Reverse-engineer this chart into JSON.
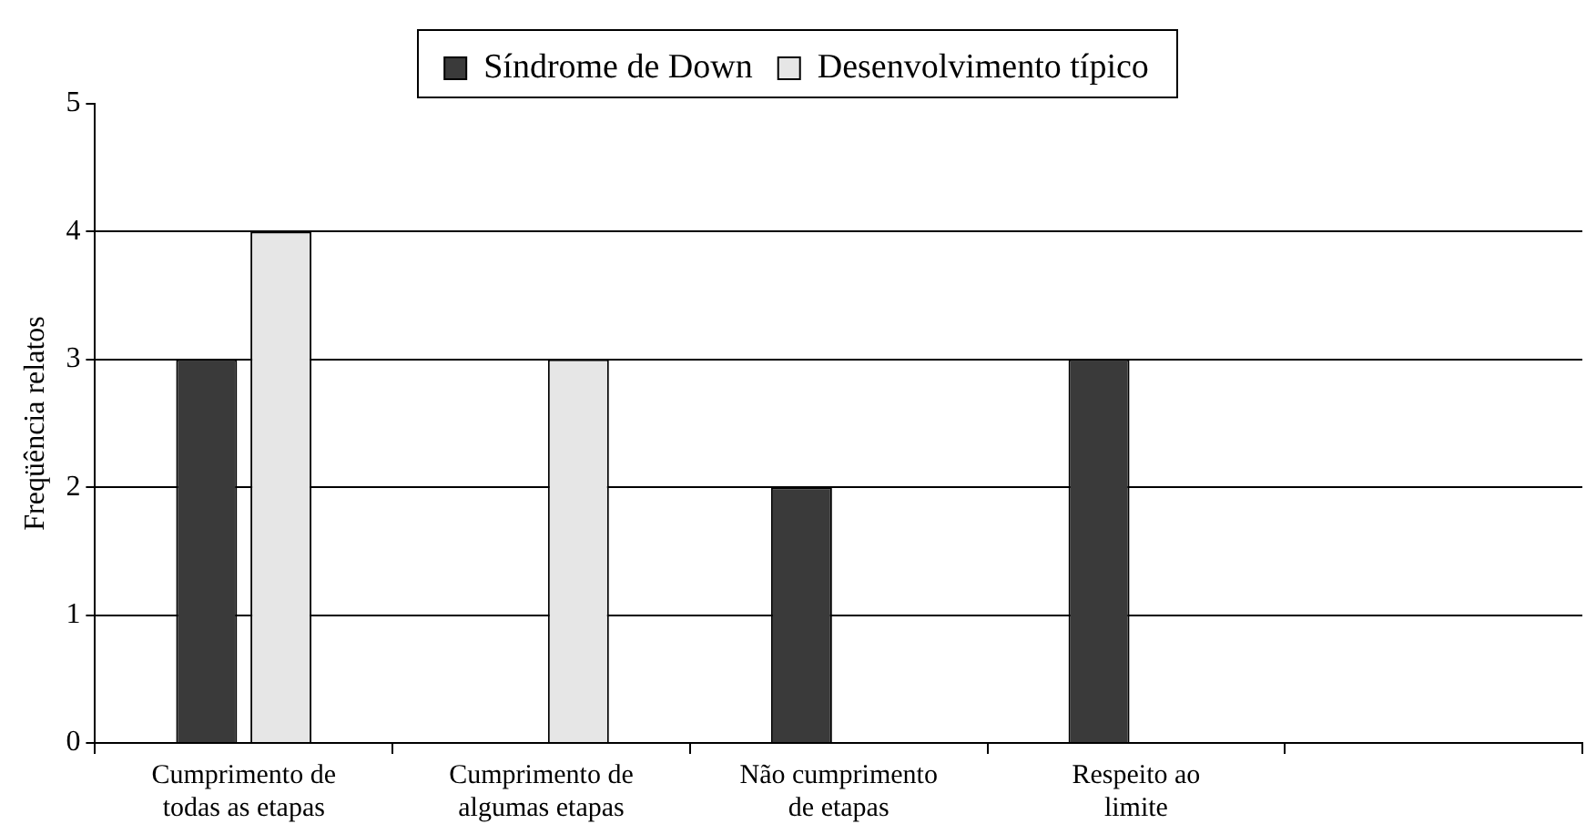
{
  "chart_data": {
    "type": "bar",
    "ylabel": "Freqüência relatos",
    "categories": [
      "Cumprimento de todas as etapas",
      "Cumprimento de algumas etapas",
      "Não cumprimento de etapas",
      "Respeito ao limite",
      null
    ],
    "series": [
      {
        "name": "Síndrome de Down",
        "color": "#3a3a3a",
        "values": [
          3,
          0,
          2,
          3,
          null
        ]
      },
      {
        "name": "Desenvolvimento típico",
        "color": "#e6e6e6",
        "values": [
          4,
          3,
          0,
          0,
          null
        ]
      }
    ],
    "ylim": [
      0,
      5
    ],
    "yticks": [
      0,
      1,
      2,
      3,
      4,
      5
    ],
    "grid": "y",
    "legend": "top"
  }
}
